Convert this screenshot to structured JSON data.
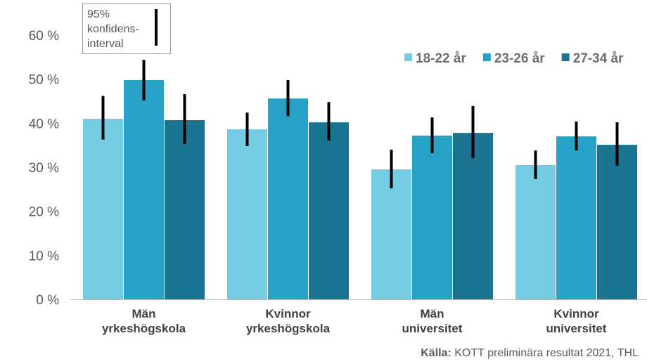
{
  "chart_data": {
    "type": "bar",
    "categories": [
      [
        "Män",
        "yrkeshögskola"
      ],
      [
        "Kvinnor",
        "yrkeshögskola"
      ],
      [
        "Män",
        "universitet"
      ],
      [
        "Kvinnor",
        "universitet"
      ]
    ],
    "series": [
      {
        "name": "18-22 år",
        "color": "#74CBE2",
        "values": [
          41.0,
          38.6,
          29.5,
          30.5
        ],
        "ci_low": [
          36.3,
          34.8,
          25.2,
          27.3
        ],
        "ci_high": [
          46.2,
          42.4,
          34.0,
          33.8
        ]
      },
      {
        "name": "23-26 år",
        "color": "#27A1C6",
        "values": [
          49.8,
          45.6,
          37.2,
          37.0
        ],
        "ci_low": [
          45.2,
          41.6,
          33.2,
          33.8
        ],
        "ci_high": [
          54.4,
          49.8,
          41.3,
          40.4
        ]
      },
      {
        "name": "27-34 år",
        "color": "#1C7590",
        "values": [
          40.7,
          40.2,
          37.8,
          35.1
        ],
        "ci_low": [
          35.3,
          36.1,
          32.1,
          30.3
        ],
        "ci_high": [
          46.6,
          44.8,
          43.9,
          40.2
        ]
      }
    ],
    "yticks": [
      "0 %",
      "10 %",
      "20 %",
      "30 %",
      "40 %",
      "50 %",
      "60 %"
    ],
    "ylim": [
      0,
      60
    ],
    "legend_position": "top-right",
    "annotation": "95% konfidens-interval",
    "grid": false
  },
  "source": {
    "label": "Källa:",
    "text": " KOTT preliminära resultat 2021, THL"
  }
}
